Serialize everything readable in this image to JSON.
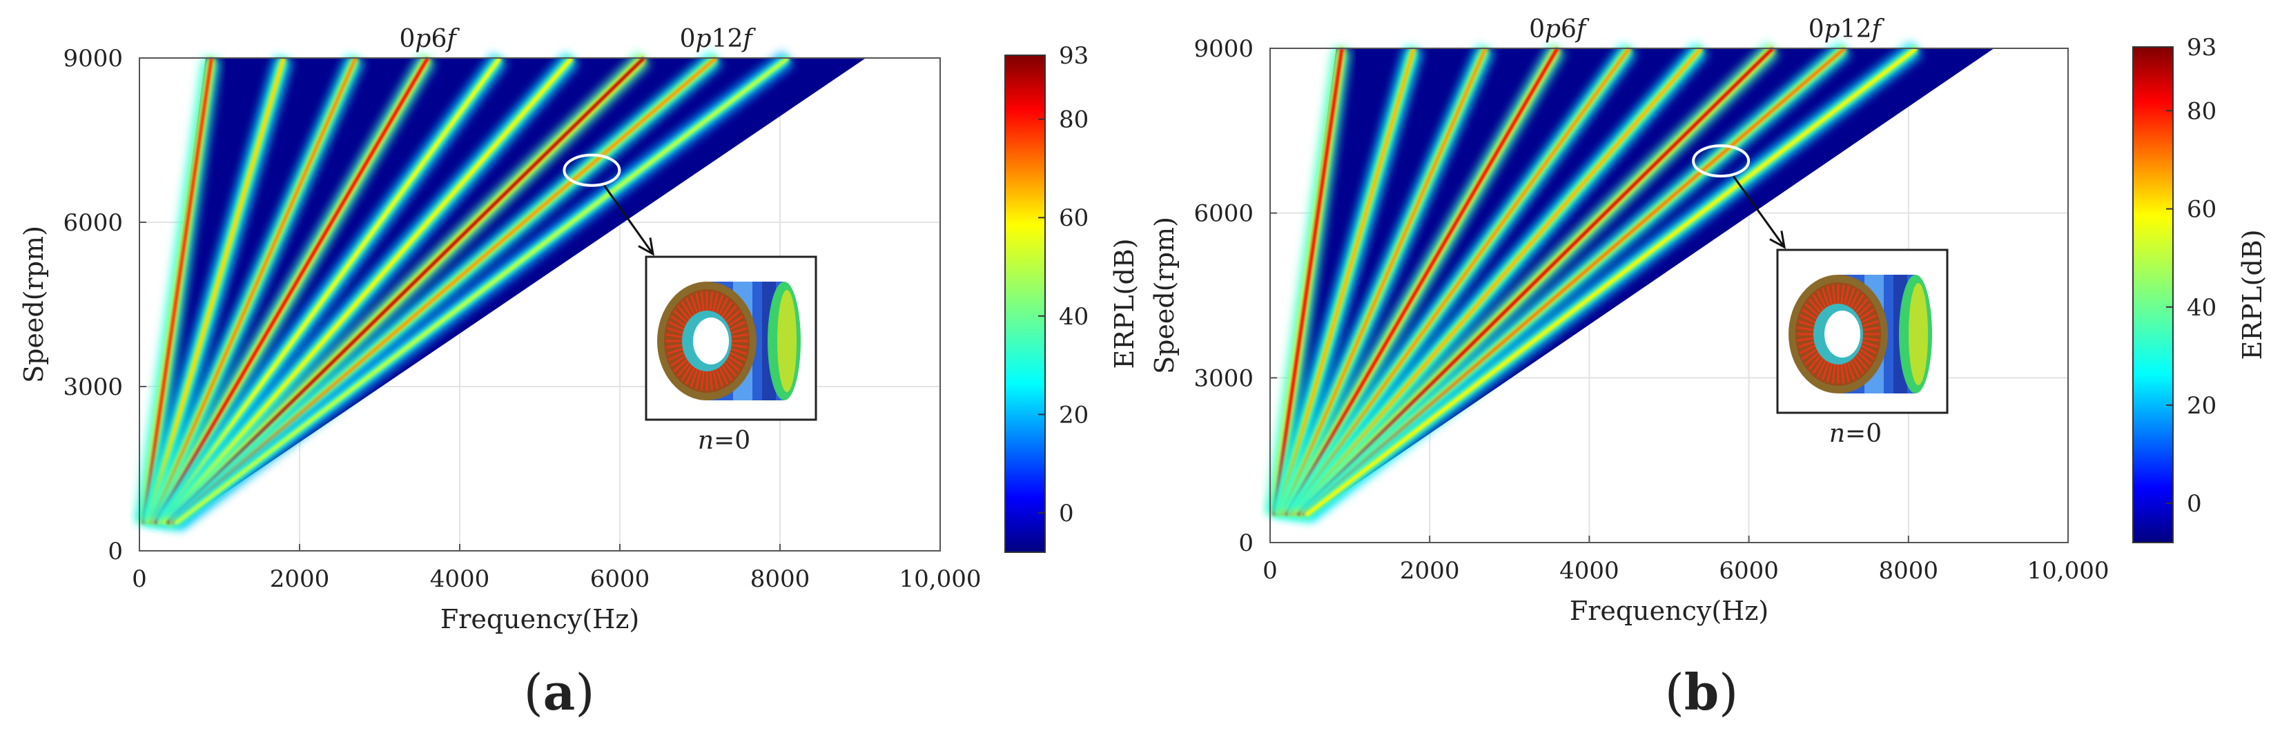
{
  "chart_data": [
    {
      "panel": "(a)",
      "type": "heatmap",
      "xlabel": "Frequency(Hz)",
      "ylabel": "Speed(rpm)",
      "xlim": [
        0,
        10000
      ],
      "ylim": [
        0,
        9000
      ],
      "xticks": [
        "0",
        "2000",
        "4000",
        "6000",
        "8000",
        "10,000"
      ],
      "yticks": [
        "0",
        "3000",
        "6000",
        "9000"
      ],
      "colorbar": {
        "label": "ERPL(dB)",
        "range": [
          -8,
          93
        ],
        "ticks": [
          "0",
          "20",
          "40",
          "60",
          "80",
          "93"
        ]
      },
      "grid": true,
      "orders": [
        {
          "order": 6,
          "intensity": 0.78
        },
        {
          "order": 12,
          "intensity": 0.5
        },
        {
          "order": 18,
          "intensity": 0.62
        },
        {
          "order": 24,
          "intensity": 0.85
        },
        {
          "order": 30,
          "intensity": 0.42
        },
        {
          "order": 36,
          "intensity": 0.45
        },
        {
          "order": 42,
          "intensity": 0.95
        },
        {
          "order": 48,
          "intensity": 0.6
        },
        {
          "order": 54,
          "intensity": 0.3
        }
      ],
      "order_labels": [
        {
          "text": "0p6f",
          "order": 24
        },
        {
          "text": "0p12f",
          "order": 48
        }
      ],
      "highlight": {
        "frequency": 5650,
        "speed": 6950
      },
      "inset": {
        "caption": "n=0"
      }
    },
    {
      "panel": "(b)",
      "type": "heatmap",
      "xlabel": "Frequency(Hz)",
      "ylabel": "Speed(rpm)",
      "xlim": [
        0,
        10000
      ],
      "ylim": [
        0,
        9000
      ],
      "xticks": [
        "0",
        "2000",
        "4000",
        "6000",
        "8000",
        "10,000"
      ],
      "yticks": [
        "0",
        "3000",
        "6000",
        "9000"
      ],
      "colorbar": {
        "label": "ERPL(dB)",
        "range": [
          -8,
          93
        ],
        "ticks": [
          "0",
          "20",
          "40",
          "60",
          "80",
          "93"
        ]
      },
      "grid": true,
      "orders": [
        {
          "order": 6,
          "intensity": 0.85
        },
        {
          "order": 12,
          "intensity": 0.55
        },
        {
          "order": 18,
          "intensity": 0.6
        },
        {
          "order": 24,
          "intensity": 0.85
        },
        {
          "order": 30,
          "intensity": 0.6
        },
        {
          "order": 36,
          "intensity": 0.55
        },
        {
          "order": 42,
          "intensity": 0.9
        },
        {
          "order": 48,
          "intensity": 0.65
        },
        {
          "order": 54,
          "intensity": 0.45
        }
      ],
      "order_labels": [
        {
          "text": "0p6f",
          "order": 24
        },
        {
          "text": "0p12f",
          "order": 48
        }
      ],
      "highlight": {
        "frequency": 5650,
        "speed": 6950
      },
      "inset": {
        "caption": "n=0"
      }
    }
  ]
}
